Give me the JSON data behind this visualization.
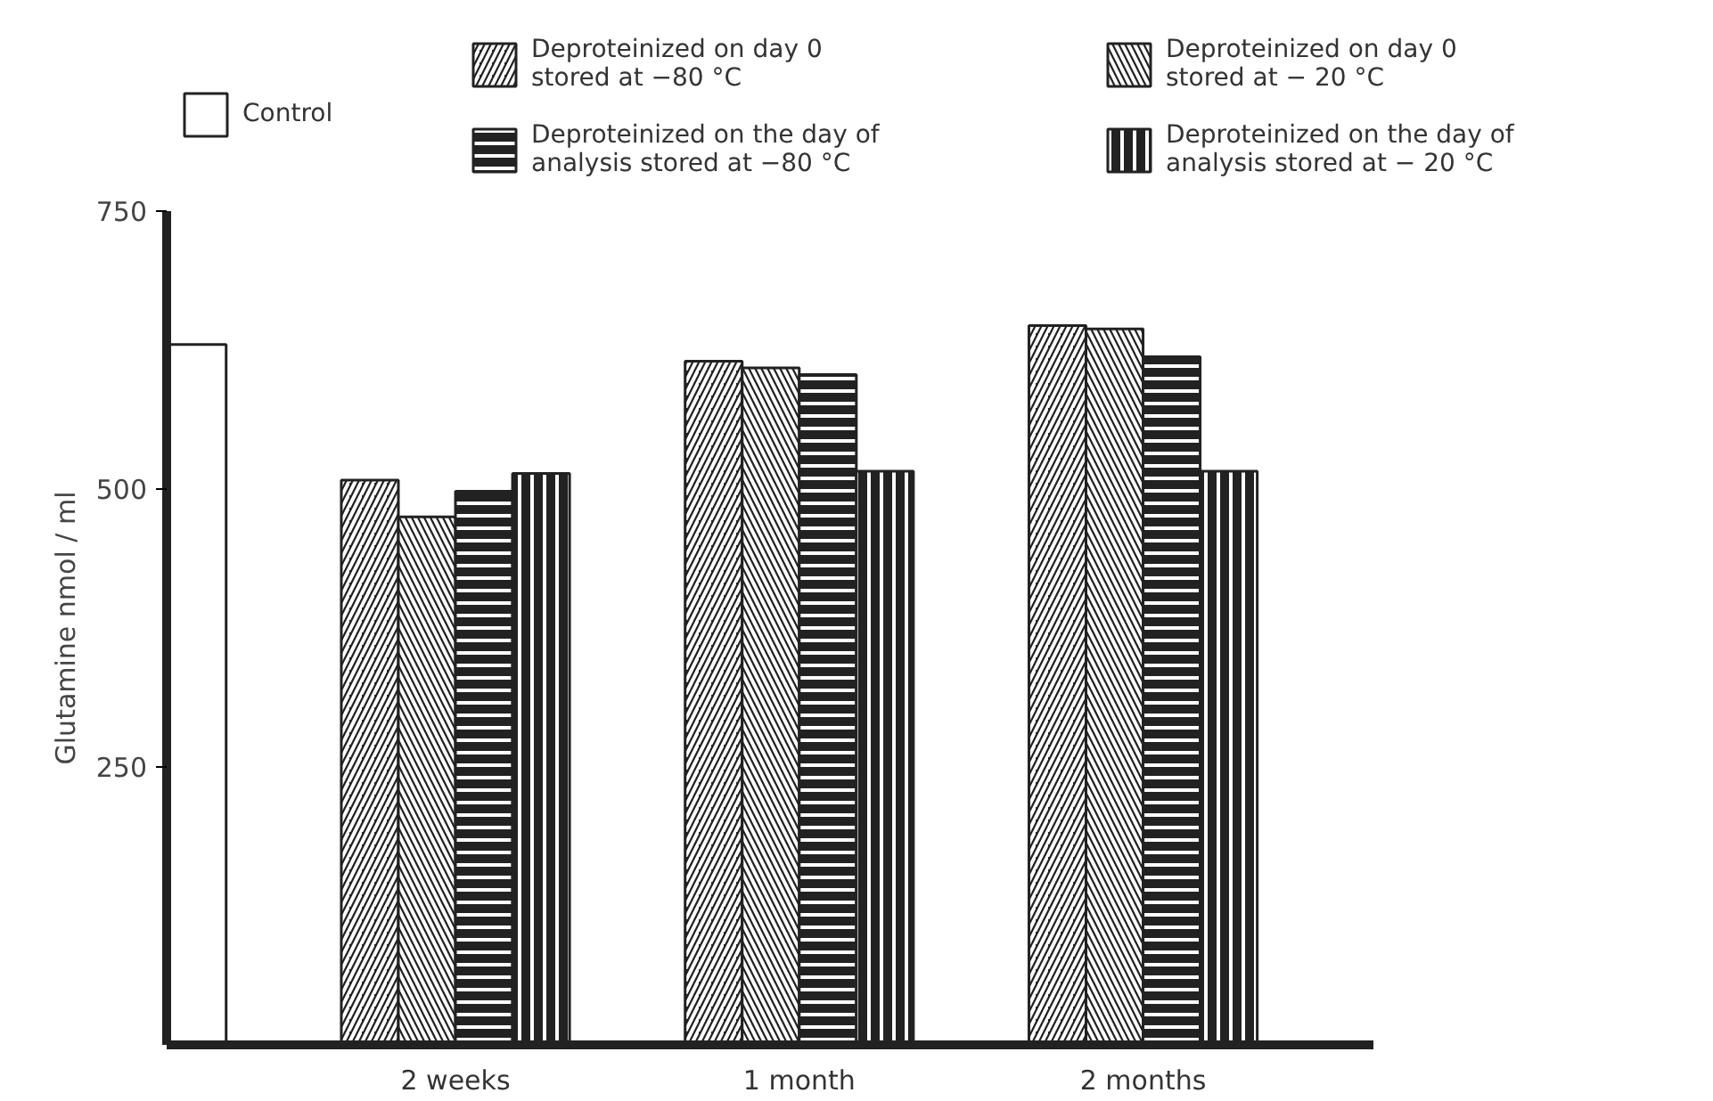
{
  "chart_data": {
    "type": "bar",
    "ylabel": "Glutamine nmol / ml",
    "categories": [
      null,
      "2 weeks",
      "1 month",
      "2 months"
    ],
    "series": [
      {
        "name": "Control",
        "color": "#ffffff",
        "values": [
          630,
          null,
          null,
          null
        ]
      },
      {
        "name": "Deproteinized on day 0\nstored at −80 °C",
        "color": "#222222",
        "values": [
          null,
          508,
          615,
          647
        ]
      },
      {
        "name": "Deproteinized on day 0\nstored at − 20 °C",
        "color": "#222222",
        "values": [
          null,
          475,
          609,
          644
        ]
      },
      {
        "name": "Deproteinized on the day of\nanalysis stored at −80 °C",
        "color": "#222222",
        "values": [
          null,
          498,
          603,
          619
        ]
      },
      {
        "name": "Deproteinized on the day of\nanalysis stored at − 20 °C",
        "color": "#222222",
        "values": [
          null,
          514,
          516,
          516
        ]
      }
    ],
    "ylim": [
      0,
      750
    ],
    "yticks": [
      250,
      500,
      750
    ],
    "grid": false,
    "legend": "top"
  }
}
